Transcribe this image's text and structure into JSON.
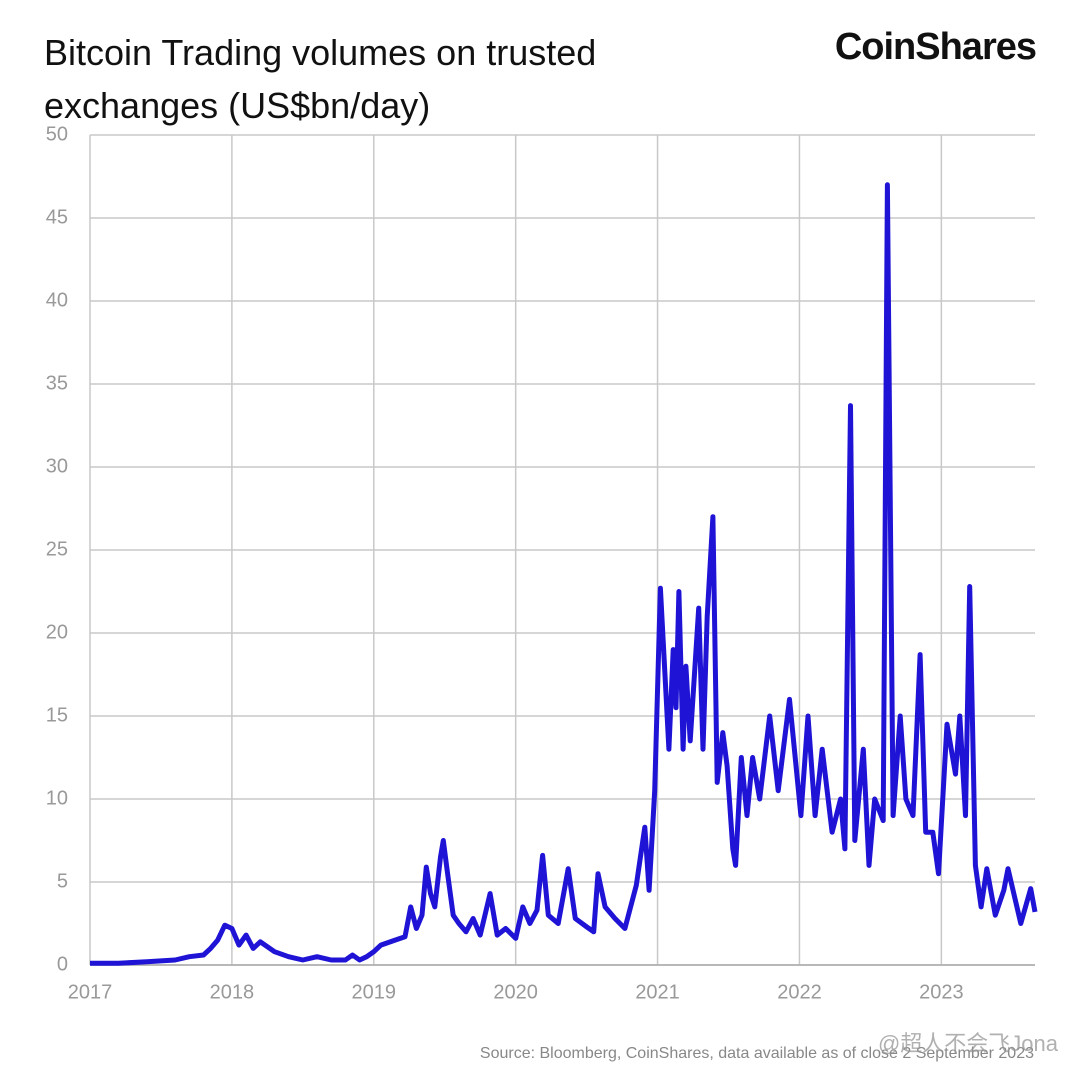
{
  "chart_data": {
    "type": "line",
    "title": "Bitcoin Trading volumes on trusted exchanges (US$bn/day)",
    "brand": "CoinShares",
    "source": "Source: Bloomberg, CoinShares, data available as of close 2 September 2023",
    "watermark": "@超人不会飞Jona",
    "xlim": [
      2017,
      2023.66
    ],
    "xticks": [
      2017,
      2018,
      2019,
      2020,
      2021,
      2022,
      2023
    ],
    "ylim": [
      0,
      50
    ],
    "yticks": [
      0,
      5,
      10,
      15,
      20,
      25,
      30,
      35,
      40,
      45,
      50
    ],
    "grid": true,
    "x": [
      2017.0,
      2017.2,
      2017.4,
      2017.6,
      2017.7,
      2017.8,
      2017.85,
      2017.9,
      2017.95,
      2018.0,
      2018.05,
      2018.1,
      2018.15,
      2018.2,
      2018.3,
      2018.4,
      2018.5,
      2018.6,
      2018.7,
      2018.8,
      2018.85,
      2018.9,
      2018.95,
      2019.0,
      2019.05,
      2019.15,
      2019.22,
      2019.26,
      2019.3,
      2019.34,
      2019.37,
      2019.4,
      2019.43,
      2019.47,
      2019.49,
      2019.52,
      2019.56,
      2019.6,
      2019.65,
      2019.7,
      2019.75,
      2019.82,
      2019.87,
      2019.93,
      2020.0,
      2020.05,
      2020.1,
      2020.15,
      2020.19,
      2020.23,
      2020.3,
      2020.37,
      2020.42,
      2020.5,
      2020.55,
      2020.58,
      2020.63,
      2020.7,
      2020.77,
      2020.85,
      2020.91,
      2020.94,
      2020.98,
      2021.02,
      2021.08,
      2021.11,
      2021.13,
      2021.15,
      2021.18,
      2021.2,
      2021.23,
      2021.29,
      2021.32,
      2021.35,
      2021.39,
      2021.42,
      2021.46,
      2021.49,
      2021.53,
      2021.55,
      2021.59,
      2021.63,
      2021.67,
      2021.72,
      2021.79,
      2021.85,
      2021.93,
      2022.01,
      2022.06,
      2022.11,
      2022.16,
      2022.23,
      2022.29,
      2022.32,
      2022.36,
      2022.39,
      2022.45,
      2022.49,
      2022.53,
      2022.59,
      2022.62,
      2022.66,
      2022.71,
      2022.75,
      2022.8,
      2022.85,
      2022.89,
      2022.94,
      2022.98,
      2023.04,
      2023.1,
      2023.13,
      2023.17,
      2023.2,
      2023.24,
      2023.28,
      2023.32,
      2023.38,
      2023.44,
      2023.47,
      2023.56,
      2023.63,
      2023.66
    ],
    "series": [
      {
        "color": "#1f14d6",
        "values": [
          0.1,
          0.1,
          0.2,
          0.3,
          0.5,
          0.6,
          1.0,
          1.5,
          2.4,
          2.2,
          1.2,
          1.8,
          1.0,
          1.4,
          0.8,
          0.5,
          0.3,
          0.5,
          0.3,
          0.3,
          0.6,
          0.3,
          0.5,
          0.8,
          1.2,
          1.5,
          1.7,
          3.5,
          2.2,
          3.0,
          5.9,
          4.3,
          3.5,
          6.5,
          7.5,
          5.5,
          3.0,
          2.5,
          2.0,
          2.8,
          1.8,
          4.3,
          1.8,
          2.2,
          1.6,
          3.5,
          2.5,
          3.3,
          6.6,
          3.0,
          2.5,
          5.8,
          2.8,
          2.3,
          2.0,
          5.5,
          3.5,
          2.8,
          2.2,
          4.8,
          8.3,
          4.5,
          10.5,
          22.7,
          13,
          19,
          15.5,
          22.5,
          13,
          18,
          13.5,
          21.5,
          13,
          21,
          27,
          11,
          14,
          12,
          7,
          6,
          12.5,
          9,
          12.5,
          10,
          15,
          10.5,
          16,
          9,
          15,
          9,
          13,
          8,
          10,
          7,
          33.7,
          7.5,
          13,
          6,
          10,
          8.7,
          47,
          9,
          15,
          10,
          9,
          18.7,
          8,
          8,
          5.5,
          14.5,
          11.5,
          15,
          9,
          22.8,
          6,
          3.5,
          5.8,
          3,
          4.5,
          5.8,
          2.5,
          4.6,
          3.2
        ]
      }
    ]
  }
}
